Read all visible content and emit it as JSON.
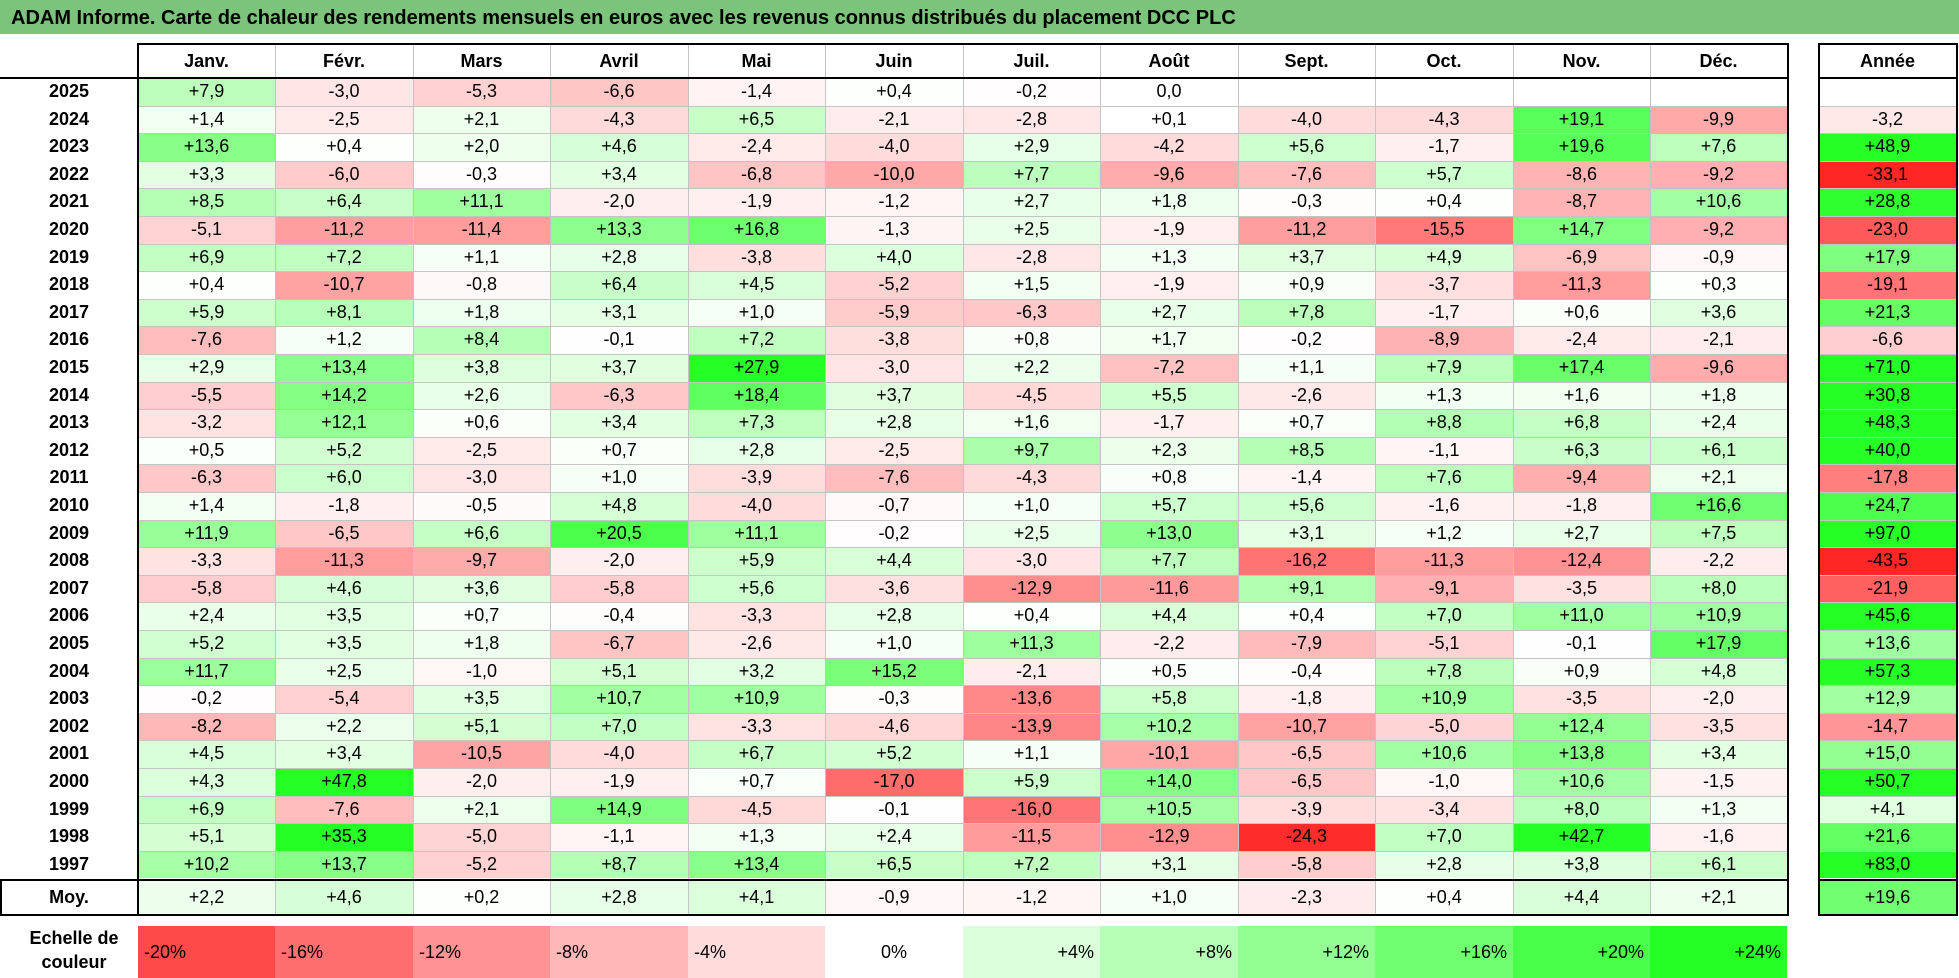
{
  "chart_data": {
    "type": "heatmap",
    "title": "ADAM Informe. Carte de chaleur des rendements mensuels en euros avec les revenus connus distribués du placement DCC PLC",
    "columns": [
      "Janv.",
      "Févr.",
      "Mars",
      "Avril",
      "Mai",
      "Juin",
      "Juil.",
      "Août",
      "Sept.",
      "Oct.",
      "Nov.",
      "Déc."
    ],
    "year_header": "Année",
    "rows": [
      {
        "year": "2025",
        "values": [
          "+7,9",
          "-3,0",
          "-5,3",
          "-6,6",
          "-1,4",
          "+0,4",
          "-0,2",
          "0,0",
          "",
          "",
          "",
          ""
        ],
        "annual": ""
      },
      {
        "year": "2024",
        "values": [
          "+1,4",
          "-2,5",
          "+2,1",
          "-4,3",
          "+6,5",
          "-2,1",
          "-2,8",
          "+0,1",
          "-4,0",
          "-4,3",
          "+19,1",
          "-9,9"
        ],
        "annual": "-3,2"
      },
      {
        "year": "2023",
        "values": [
          "+13,6",
          "+0,4",
          "+2,0",
          "+4,6",
          "-2,4",
          "-4,0",
          "+2,9",
          "-4,2",
          "+5,6",
          "-1,7",
          "+19,6",
          "+7,6"
        ],
        "annual": "+48,9"
      },
      {
        "year": "2022",
        "values": [
          "+3,3",
          "-6,0",
          "-0,3",
          "+3,4",
          "-6,8",
          "-10,0",
          "+7,7",
          "-9,6",
          "-7,6",
          "+5,7",
          "-8,6",
          "-9,2"
        ],
        "annual": "-33,1"
      },
      {
        "year": "2021",
        "values": [
          "+8,5",
          "+6,4",
          "+11,1",
          "-2,0",
          "-1,9",
          "-1,2",
          "+2,7",
          "+1,8",
          "-0,3",
          "+0,4",
          "-8,7",
          "+10,6"
        ],
        "annual": "+28,8"
      },
      {
        "year": "2020",
        "values": [
          "-5,1",
          "-11,2",
          "-11,4",
          "+13,3",
          "+16,8",
          "-1,3",
          "+2,5",
          "-1,9",
          "-11,2",
          "-15,5",
          "+14,7",
          "-9,2"
        ],
        "annual": "-23,0"
      },
      {
        "year": "2019",
        "values": [
          "+6,9",
          "+7,2",
          "+1,1",
          "+2,8",
          "-3,8",
          "+4,0",
          "-2,8",
          "+1,3",
          "+3,7",
          "+4,9",
          "-6,9",
          "-0,9"
        ],
        "annual": "+17,9"
      },
      {
        "year": "2018",
        "values": [
          "+0,4",
          "-10,7",
          "-0,8",
          "+6,4",
          "+4,5",
          "-5,2",
          "+1,5",
          "-1,9",
          "+0,9",
          "-3,7",
          "-11,3",
          "+0,3"
        ],
        "annual": "-19,1"
      },
      {
        "year": "2017",
        "values": [
          "+5,9",
          "+8,1",
          "+1,8",
          "+3,1",
          "+1,0",
          "-5,9",
          "-6,3",
          "+2,7",
          "+7,8",
          "-1,7",
          "+0,6",
          "+3,6"
        ],
        "annual": "+21,3"
      },
      {
        "year": "2016",
        "values": [
          "-7,6",
          "+1,2",
          "+8,4",
          "-0,1",
          "+7,2",
          "-3,8",
          "+0,8",
          "+1,7",
          "-0,2",
          "-8,9",
          "-2,4",
          "-2,1"
        ],
        "annual": "-6,6"
      },
      {
        "year": "2015",
        "values": [
          "+2,9",
          "+13,4",
          "+3,8",
          "+3,7",
          "+27,9",
          "-3,0",
          "+2,2",
          "-7,2",
          "+1,1",
          "+7,9",
          "+17,4",
          "-9,6"
        ],
        "annual": "+71,0"
      },
      {
        "year": "2014",
        "values": [
          "-5,5",
          "+14,2",
          "+2,6",
          "-6,3",
          "+18,4",
          "+3,7",
          "-4,5",
          "+5,5",
          "-2,6",
          "+1,3",
          "+1,6",
          "+1,8"
        ],
        "annual": "+30,8"
      },
      {
        "year": "2013",
        "values": [
          "-3,2",
          "+12,1",
          "+0,6",
          "+3,4",
          "+7,3",
          "+2,8",
          "+1,6",
          "-1,7",
          "+0,7",
          "+8,8",
          "+6,8",
          "+2,4"
        ],
        "annual": "+48,3"
      },
      {
        "year": "2012",
        "values": [
          "+0,5",
          "+5,2",
          "-2,5",
          "+0,7",
          "+2,8",
          "-2,5",
          "+9,7",
          "+2,3",
          "+8,5",
          "-1,1",
          "+6,3",
          "+6,1"
        ],
        "annual": "+40,0"
      },
      {
        "year": "2011",
        "values": [
          "-6,3",
          "+6,0",
          "-3,0",
          "+1,0",
          "-3,9",
          "-7,6",
          "-4,3",
          "+0,8",
          "-1,4",
          "+7,6",
          "-9,4",
          "+2,1"
        ],
        "annual": "-17,8"
      },
      {
        "year": "2010",
        "values": [
          "+1,4",
          "-1,8",
          "-0,5",
          "+4,8",
          "-4,0",
          "-0,7",
          "+1,0",
          "+5,7",
          "+5,6",
          "-1,6",
          "-1,8",
          "+16,6"
        ],
        "annual": "+24,7"
      },
      {
        "year": "2009",
        "values": [
          "+11,9",
          "-6,5",
          "+6,6",
          "+20,5",
          "+11,1",
          "-0,2",
          "+2,5",
          "+13,0",
          "+3,1",
          "+1,2",
          "+2,7",
          "+7,5"
        ],
        "annual": "+97,0"
      },
      {
        "year": "2008",
        "values": [
          "-3,3",
          "-11,3",
          "-9,7",
          "-2,0",
          "+5,9",
          "+4,4",
          "-3,0",
          "+7,7",
          "-16,2",
          "-11,3",
          "-12,4",
          "-2,2"
        ],
        "annual": "-43,5"
      },
      {
        "year": "2007",
        "values": [
          "-5,8",
          "+4,6",
          "+3,6",
          "-5,8",
          "+5,6",
          "-3,6",
          "-12,9",
          "-11,6",
          "+9,1",
          "-9,1",
          "-3,5",
          "+8,0"
        ],
        "annual": "-21,9"
      },
      {
        "year": "2006",
        "values": [
          "+2,4",
          "+3,5",
          "+0,7",
          "-0,4",
          "-3,3",
          "+2,8",
          "+0,4",
          "+4,4",
          "+0,4",
          "+7,0",
          "+11,0",
          "+10,9"
        ],
        "annual": "+45,6"
      },
      {
        "year": "2005",
        "values": [
          "+5,2",
          "+3,5",
          "+1,8",
          "-6,7",
          "-2,6",
          "+1,0",
          "+11,3",
          "-2,2",
          "-7,9",
          "-5,1",
          "-0,1",
          "+17,9"
        ],
        "annual": "+13,6"
      },
      {
        "year": "2004",
        "values": [
          "+11,7",
          "+2,5",
          "-1,0",
          "+5,1",
          "+3,2",
          "+15,2",
          "-2,1",
          "+0,5",
          "-0,4",
          "+7,8",
          "+0,9",
          "+4,8"
        ],
        "annual": "+57,3"
      },
      {
        "year": "2003",
        "values": [
          "-0,2",
          "-5,4",
          "+3,5",
          "+10,7",
          "+10,9",
          "-0,3",
          "-13,6",
          "+5,8",
          "-1,8",
          "+10,9",
          "-3,5",
          "-2,0"
        ],
        "annual": "+12,9"
      },
      {
        "year": "2002",
        "values": [
          "-8,2",
          "+2,2",
          "+5,1",
          "+7,0",
          "-3,3",
          "-4,6",
          "-13,9",
          "+10,2",
          "-10,7",
          "-5,0",
          "+12,4",
          "-3,5"
        ],
        "annual": "-14,7"
      },
      {
        "year": "2001",
        "values": [
          "+4,5",
          "+3,4",
          "-10,5",
          "-4,0",
          "+6,7",
          "+5,2",
          "+1,1",
          "-10,1",
          "-6,5",
          "+10,6",
          "+13,8",
          "+3,4"
        ],
        "annual": "+15,0"
      },
      {
        "year": "2000",
        "values": [
          "+4,3",
          "+47,8",
          "-2,0",
          "-1,9",
          "+0,7",
          "-17,0",
          "+5,9",
          "+14,0",
          "-6,5",
          "-1,0",
          "+10,6",
          "-1,5"
        ],
        "annual": "+50,7"
      },
      {
        "year": "1999",
        "values": [
          "+6,9",
          "-7,6",
          "+2,1",
          "+14,9",
          "-4,5",
          "-0,1",
          "-16,0",
          "+10,5",
          "-3,9",
          "-3,4",
          "+8,0",
          "+1,3"
        ],
        "annual": "+4,1"
      },
      {
        "year": "1998",
        "values": [
          "+5,1",
          "+35,3",
          "-5,0",
          "-1,1",
          "+1,3",
          "+2,4",
          "-11,5",
          "-12,9",
          "-24,3",
          "+7,0",
          "+42,7",
          "-1,6"
        ],
        "annual": "+21,6"
      },
      {
        "year": "1997",
        "values": [
          "+10,2",
          "+13,7",
          "-5,2",
          "+8,7",
          "+13,4",
          "+6,5",
          "+7,2",
          "+3,1",
          "-5,8",
          "+2,8",
          "+3,8",
          "+6,1"
        ],
        "annual": "+83,0"
      }
    ],
    "average": {
      "label": "Moy.",
      "values": [
        "+2,2",
        "+4,6",
        "+0,2",
        "+2,8",
        "+4,1",
        "-0,9",
        "-1,2",
        "+1,0",
        "-2,3",
        "+0,4",
        "+4,4",
        "+2,1"
      ],
      "annual": "+19,6"
    },
    "legend": {
      "label_line1": "Echelle de",
      "label_line2": "couleur",
      "steps": [
        "-20%",
        "-16%",
        "-12%",
        "-8%",
        "-4%",
        "0%",
        "+4%",
        "+8%",
        "+12%",
        "+16%",
        "+20%",
        "+24%"
      ],
      "step_values": [
        -20,
        -16,
        -12,
        -8,
        -4,
        0,
        4,
        8,
        12,
        16,
        20,
        24
      ]
    },
    "colors": {
      "negative": "#ff0000",
      "neutral": "#ffffff",
      "positive": "#00ff00",
      "title_bar": "#7cc47c"
    }
  }
}
